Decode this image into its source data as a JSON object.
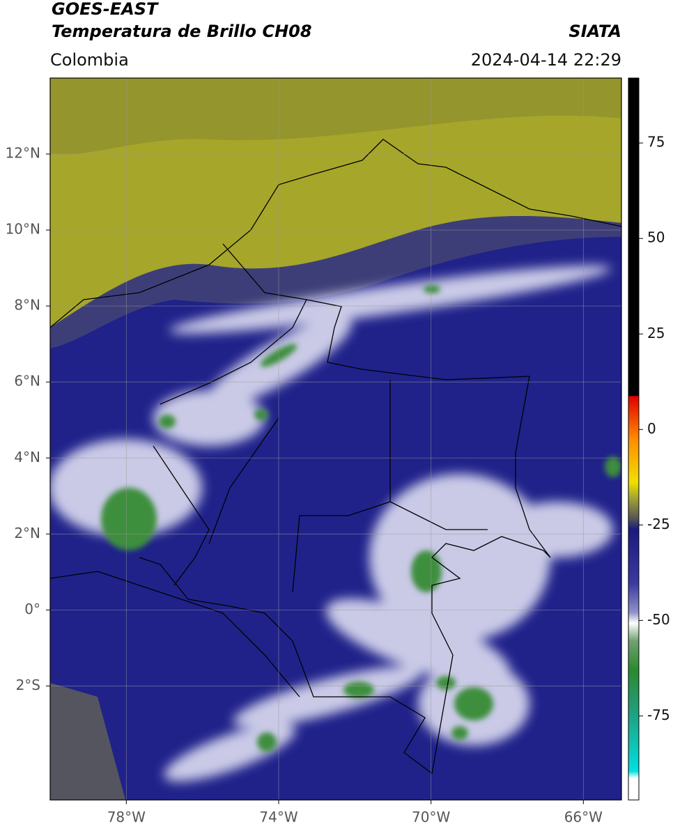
{
  "header": {
    "title": "GOES-EAST",
    "subtitle": "Temperatura de Brillo CH08",
    "source": "SIATA",
    "region": "Colombia",
    "datetime": "2024-04-14 22:29"
  },
  "map": {
    "lon_range": [
      -80,
      -65
    ],
    "lat_range": [
      -5,
      14
    ],
    "lon_ticks": [
      {
        "value": -78,
        "label": "78°W"
      },
      {
        "value": -74,
        "label": "74°W"
      },
      {
        "value": -70,
        "label": "70°W"
      },
      {
        "value": -66,
        "label": "66°W"
      }
    ],
    "lat_ticks": [
      {
        "value": 12,
        "label": "12°N"
      },
      {
        "value": 10,
        "label": "10°N"
      },
      {
        "value": 8,
        "label": "8°N"
      },
      {
        "value": 6,
        "label": "6°N"
      },
      {
        "value": 4,
        "label": "4°N"
      },
      {
        "value": 2,
        "label": "2°N"
      },
      {
        "value": 0,
        "label": "0°"
      },
      {
        "value": -2,
        "label": "2°S"
      }
    ],
    "grid": true
  },
  "colorbar": {
    "range": [
      -97,
      92
    ],
    "ticks": [
      75,
      50,
      25,
      0,
      -25,
      -50,
      -75
    ]
  }
}
